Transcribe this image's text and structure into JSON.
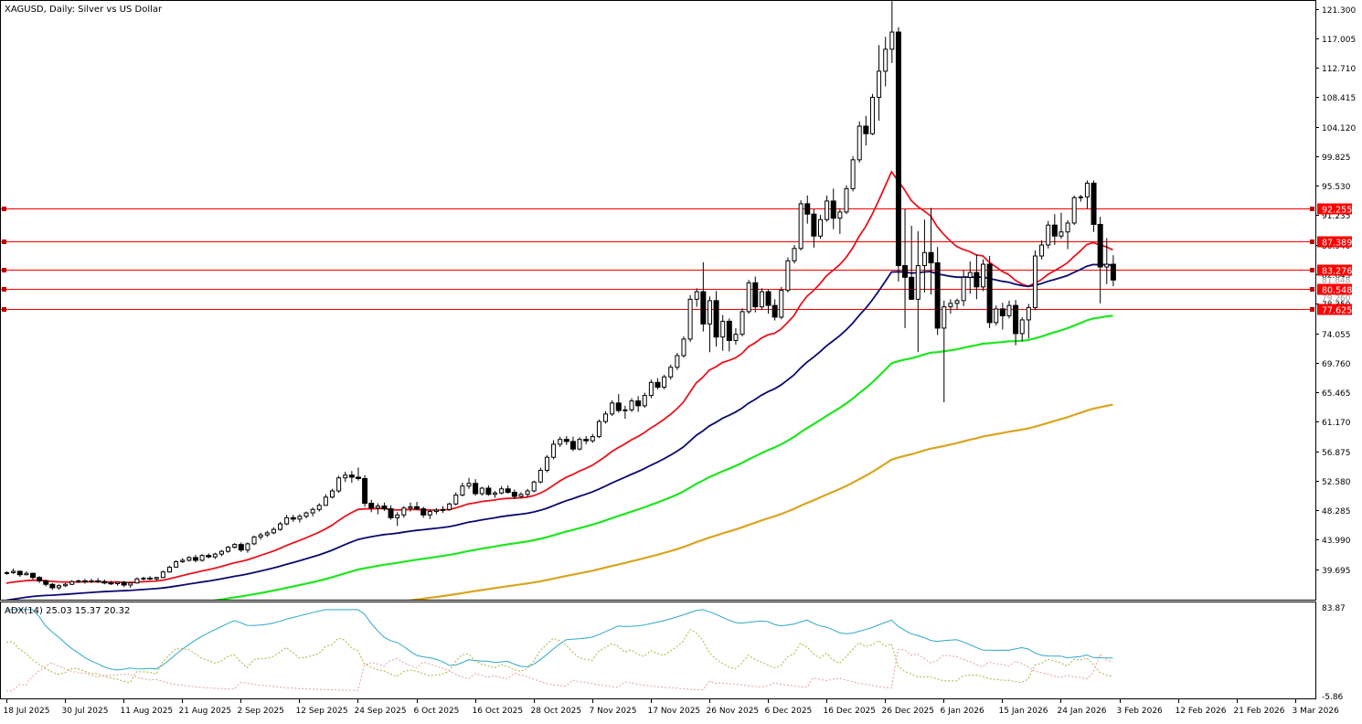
{
  "chart_data": {
    "type": "candlestick",
    "title": "XAGUSD, Daily:  Silver vs US Dollar",
    "y_ticks": [
      121.3,
      117.005,
      112.71,
      108.415,
      104.12,
      99.825,
      95.53,
      91.235,
      86.94,
      82.645,
      78.35,
      74.055,
      69.76,
      65.465,
      61.17,
      56.875,
      52.58,
      48.285,
      43.99,
      39.695
    ],
    "y_tick_labels": [
      "121.300",
      "117.005",
      "112.710",
      "108.415",
      "104.120",
      "99.825",
      "95.530",
      "91.235",
      "86.940",
      "82.645",
      "78.350",
      "74.055",
      "69.760",
      "65.465",
      "61.170",
      "56.875",
      "52.580",
      "48.285",
      "43.990",
      "39.695"
    ],
    "ylim": [
      35.4,
      122.3
    ],
    "x_labels": [
      "18 Jul 2025",
      "30 Jul 2025",
      "11 Aug 2025",
      "21 Aug 2025",
      "2 Sep 2025",
      "12 Sep 2025",
      "24 Sep 2025",
      "6 Oct 2025",
      "16 Oct 2025",
      "28 Oct 2025",
      "7 Nov 2025",
      "17 Nov 2025",
      "26 Nov 2025",
      "6 Dec 2025",
      "16 Dec 2025",
      "26 Dec 2025",
      "6 Jan 2026",
      "15 Jan 2026",
      "24 Jan 2026",
      "3 Feb 2026",
      "12 Feb 2026",
      "21 Feb 2026",
      "3 Mar 2026"
    ],
    "x_label_bar_index": [
      0,
      9,
      18,
      27,
      36,
      45,
      54,
      63,
      72,
      81,
      90,
      99,
      108,
      117,
      126,
      135,
      144,
      153,
      162,
      171,
      180,
      189,
      198
    ],
    "levels": [
      {
        "value": 92.255,
        "label": "92.255"
      },
      {
        "value": 87.389,
        "label": "87.389"
      },
      {
        "value": 83.276,
        "label": "83.276"
      },
      {
        "value": 80.548,
        "label": "80.548"
      },
      {
        "value": 77.625,
        "label": "77.625"
      }
    ],
    "hidden_labels": [
      "81.848",
      "79.260"
    ],
    "indicator": {
      "label": "ADX(14) 25.03 15.37 20.32",
      "adx": 25.03,
      "plus_di": 15.37,
      "minus_di": 20.32,
      "ylim": [
        -5.86,
        83.87
      ],
      "y_tick_labels": [
        "83.87",
        "-5.86"
      ]
    },
    "ohlc": [
      [
        39.1,
        39.4,
        38.9,
        39.2
      ],
      [
        39.2,
        39.8,
        39.0,
        39.4
      ],
      [
        39.4,
        39.5,
        38.6,
        38.9
      ],
      [
        38.9,
        39.4,
        38.8,
        39.1
      ],
      [
        39.1,
        39.2,
        38.2,
        38.5
      ],
      [
        38.5,
        38.7,
        37.7,
        38.0
      ],
      [
        38.0,
        38.2,
        37.2,
        37.5
      ],
      [
        37.5,
        37.7,
        36.7,
        37.0
      ],
      [
        37.0,
        37.5,
        36.7,
        37.3
      ],
      [
        37.3,
        37.7,
        37.1,
        37.5
      ],
      [
        37.5,
        38.1,
        37.4,
        37.9
      ],
      [
        37.9,
        38.2,
        37.7,
        38.0
      ],
      [
        38.0,
        38.3,
        37.6,
        37.9
      ],
      [
        37.9,
        38.3,
        37.7,
        38.0
      ],
      [
        38.0,
        38.4,
        37.7,
        37.9
      ],
      [
        37.9,
        38.2,
        37.5,
        37.7
      ],
      [
        37.7,
        38.0,
        37.4,
        37.6
      ],
      [
        37.6,
        37.9,
        37.3,
        37.8
      ],
      [
        37.8,
        38.0,
        37.1,
        37.4
      ],
      [
        37.4,
        37.8,
        37.0,
        37.7
      ],
      [
        37.7,
        38.5,
        37.6,
        38.3
      ],
      [
        38.3,
        38.6,
        38.1,
        38.4
      ],
      [
        38.4,
        38.7,
        38.1,
        38.3
      ],
      [
        38.3,
        38.6,
        38.0,
        38.5
      ],
      [
        38.5,
        39.5,
        38.4,
        39.3
      ],
      [
        39.3,
        40.2,
        39.2,
        40.0
      ],
      [
        40.0,
        41.0,
        39.9,
        40.8
      ],
      [
        40.8,
        41.3,
        40.6,
        41.0
      ],
      [
        41.0,
        41.6,
        40.8,
        41.4
      ],
      [
        41.4,
        41.8,
        40.7,
        41.0
      ],
      [
        41.0,
        41.9,
        40.8,
        41.7
      ],
      [
        41.7,
        42.0,
        41.3,
        41.5
      ],
      [
        41.5,
        42.1,
        41.2,
        41.9
      ],
      [
        41.9,
        42.5,
        41.6,
        42.3
      ],
      [
        42.3,
        43.1,
        42.1,
        42.9
      ],
      [
        42.9,
        43.5,
        42.7,
        43.3
      ],
      [
        43.3,
        43.6,
        42.2,
        42.5
      ],
      [
        42.5,
        43.6,
        42.1,
        43.4
      ],
      [
        43.4,
        44.6,
        43.2,
        44.4
      ],
      [
        44.4,
        45.0,
        44.0,
        44.7
      ],
      [
        44.7,
        45.3,
        44.4,
        45.0
      ],
      [
        45.0,
        45.8,
        44.8,
        45.5
      ],
      [
        45.5,
        46.6,
        45.3,
        46.3
      ],
      [
        46.3,
        47.6,
        46.1,
        47.2
      ],
      [
        47.2,
        47.6,
        46.6,
        47.0
      ],
      [
        47.0,
        47.7,
        46.5,
        47.4
      ],
      [
        47.4,
        48.1,
        47.1,
        47.9
      ],
      [
        47.9,
        48.7,
        47.4,
        48.4
      ],
      [
        48.4,
        49.3,
        48.1,
        49.0
      ],
      [
        49.0,
        50.6,
        48.9,
        50.2
      ],
      [
        50.2,
        51.4,
        50.0,
        51.1
      ],
      [
        51.1,
        53.3,
        50.8,
        53.0
      ],
      [
        53.0,
        53.9,
        52.4,
        53.4
      ],
      [
        53.4,
        54.0,
        52.3,
        53.1
      ],
      [
        53.1,
        54.5,
        52.6,
        52.9
      ],
      [
        52.9,
        53.4,
        48.8,
        49.3
      ],
      [
        49.3,
        49.8,
        48.0,
        48.6
      ],
      [
        48.6,
        49.3,
        47.7,
        48.9
      ],
      [
        48.9,
        49.4,
        48.2,
        48.5
      ],
      [
        48.5,
        49.0,
        46.9,
        47.2
      ],
      [
        47.2,
        48.0,
        46.0,
        47.6
      ],
      [
        47.6,
        48.9,
        47.2,
        48.6
      ],
      [
        48.6,
        49.4,
        48.1,
        48.8
      ],
      [
        48.8,
        49.5,
        48.3,
        48.5
      ],
      [
        48.5,
        48.8,
        47.2,
        47.6
      ],
      [
        47.6,
        48.4,
        47.0,
        48.1
      ],
      [
        48.1,
        48.6,
        47.7,
        48.3
      ],
      [
        48.3,
        48.9,
        47.9,
        48.4
      ],
      [
        48.4,
        49.4,
        48.2,
        49.2
      ],
      [
        49.2,
        50.9,
        49.0,
        50.5
      ],
      [
        50.5,
        52.3,
        50.3,
        51.8
      ],
      [
        51.8,
        53.0,
        51.4,
        52.2
      ],
      [
        52.2,
        52.8,
        50.4,
        50.7
      ],
      [
        50.7,
        51.7,
        50.4,
        51.5
      ],
      [
        51.5,
        51.9,
        50.4,
        50.6
      ],
      [
        50.6,
        51.1,
        50.1,
        50.8
      ],
      [
        50.8,
        51.8,
        50.6,
        51.4
      ],
      [
        51.4,
        51.9,
        50.7,
        50.9
      ],
      [
        50.9,
        51.3,
        49.9,
        50.3
      ],
      [
        50.3,
        50.9,
        50.0,
        50.6
      ],
      [
        50.6,
        51.4,
        50.2,
        51.1
      ],
      [
        51.1,
        52.6,
        50.9,
        52.4
      ],
      [
        52.4,
        54.5,
        52.2,
        54.1
      ],
      [
        54.1,
        56.3,
        53.8,
        56.0
      ],
      [
        56.0,
        58.5,
        55.7,
        57.9
      ],
      [
        57.9,
        59.0,
        57.5,
        58.6
      ],
      [
        58.6,
        59.1,
        57.8,
        58.3
      ],
      [
        58.3,
        59.0,
        56.9,
        57.2
      ],
      [
        57.2,
        58.9,
        57.0,
        58.6
      ],
      [
        58.6,
        59.1,
        57.9,
        58.4
      ],
      [
        58.4,
        59.4,
        58.1,
        59.0
      ],
      [
        59.0,
        61.5,
        58.8,
        61.2
      ],
      [
        61.2,
        62.7,
        60.9,
        62.3
      ],
      [
        62.3,
        64.3,
        62.0,
        63.9
      ],
      [
        63.9,
        65.2,
        62.5,
        62.8
      ],
      [
        62.8,
        63.5,
        61.6,
        62.9
      ],
      [
        62.9,
        64.6,
        62.6,
        64.2
      ],
      [
        64.2,
        64.9,
        62.6,
        63.5
      ],
      [
        63.5,
        65.4,
        63.2,
        65.0
      ],
      [
        65.0,
        67.3,
        64.6,
        66.9
      ],
      [
        66.9,
        67.5,
        65.9,
        66.2
      ],
      [
        66.2,
        68.0,
        65.9,
        67.7
      ],
      [
        67.7,
        69.5,
        67.3,
        69.1
      ],
      [
        69.1,
        71.2,
        68.7,
        70.8
      ],
      [
        70.8,
        73.6,
        70.5,
        73.2
      ],
      [
        73.2,
        79.6,
        72.8,
        79.0
      ],
      [
        79.0,
        80.6,
        77.9,
        80.1
      ],
      [
        80.1,
        84.4,
        74.3,
        75.4
      ],
      [
        75.4,
        79.4,
        71.3,
        78.8
      ],
      [
        78.8,
        80.2,
        72.1,
        73.5
      ],
      [
        73.5,
        76.7,
        71.5,
        75.8
      ],
      [
        75.8,
        76.2,
        71.4,
        73.0
      ],
      [
        73.0,
        74.8,
        72.4,
        73.9
      ],
      [
        73.9,
        77.7,
        73.6,
        77.2
      ],
      [
        77.2,
        81.8,
        76.9,
        81.4
      ],
      [
        81.4,
        82.3,
        77.1,
        77.9
      ],
      [
        77.9,
        80.6,
        77.5,
        80.1
      ],
      [
        80.1,
        80.4,
        76.9,
        78.1
      ],
      [
        78.1,
        79.0,
        75.9,
        76.4
      ],
      [
        76.4,
        80.8,
        76.1,
        80.3
      ],
      [
        80.3,
        85.1,
        80.0,
        84.6
      ],
      [
        84.6,
        86.9,
        84.2,
        86.4
      ],
      [
        86.4,
        93.4,
        86.1,
        92.9
      ],
      [
        92.9,
        94.1,
        90.0,
        91.4
      ],
      [
        91.4,
        92.1,
        86.5,
        88.2
      ],
      [
        88.2,
        91.3,
        87.8,
        90.6
      ],
      [
        90.6,
        94.1,
        90.3,
        93.3
      ],
      [
        93.3,
        95.1,
        89.2,
        90.8
      ],
      [
        90.8,
        92.2,
        88.5,
        91.7
      ],
      [
        91.7,
        95.6,
        91.4,
        95.1
      ],
      [
        95.1,
        99.8,
        94.7,
        99.3
      ],
      [
        99.3,
        104.9,
        98.9,
        104.2
      ],
      [
        104.2,
        105.7,
        101.4,
        103.1
      ],
      [
        103.1,
        108.9,
        102.9,
        108.4
      ],
      [
        108.4,
        116.0,
        105.0,
        112.2
      ],
      [
        112.2,
        117.2,
        110.0,
        115.4
      ],
      [
        115.4,
        122.4,
        113.4,
        117.9
      ],
      [
        117.9,
        118.6,
        81.6,
        83.9
      ],
      [
        83.9,
        92.1,
        74.8,
        82.2
      ],
      [
        82.2,
        89.7,
        78.9,
        79.0
      ],
      [
        79.0,
        88.9,
        71.3,
        83.9
      ],
      [
        83.9,
        90.6,
        80.0,
        85.8
      ],
      [
        85.8,
        92.3,
        79.7,
        84.3
      ],
      [
        84.3,
        86.6,
        73.8,
        74.8
      ],
      [
        74.8,
        78.8,
        64.0,
        77.9
      ],
      [
        77.9,
        79.0,
        76.9,
        78.4
      ],
      [
        78.4,
        79.1,
        77.5,
        78.8
      ],
      [
        78.8,
        83.2,
        78.0,
        82.2
      ],
      [
        82.2,
        84.5,
        79.8,
        82.9
      ],
      [
        82.9,
        85.5,
        79.0,
        80.8
      ],
      [
        80.8,
        84.8,
        80.2,
        84.1
      ],
      [
        84.1,
        85.3,
        74.8,
        75.6
      ],
      [
        75.6,
        78.1,
        75.2,
        77.6
      ],
      [
        77.6,
        78.5,
        74.6,
        76.6
      ],
      [
        76.6,
        78.8,
        76.2,
        78.1
      ],
      [
        78.1,
        78.9,
        72.3,
        74.0
      ],
      [
        74.0,
        76.4,
        72.9,
        76.0
      ],
      [
        76.0,
        78.3,
        73.3,
        77.8
      ],
      [
        77.8,
        86.1,
        77.4,
        85.3
      ],
      [
        85.3,
        87.6,
        84.8,
        86.9
      ],
      [
        86.9,
        90.4,
        86.4,
        89.8
      ],
      [
        89.8,
        91.4,
        86.9,
        88.2
      ],
      [
        88.2,
        91.6,
        87.8,
        88.8
      ],
      [
        88.8,
        90.5,
        86.3,
        90.1
      ],
      [
        90.1,
        94.1,
        89.8,
        93.8
      ],
      [
        93.8,
        94.2,
        93.2,
        93.9
      ],
      [
        93.9,
        96.3,
        92.2,
        95.9
      ],
      [
        95.9,
        96.3,
        88.8,
        89.9
      ],
      [
        89.9,
        91.0,
        78.4,
        83.7
      ],
      [
        83.7,
        87.9,
        81.2,
        84.1
      ],
      [
        84.1,
        85.4,
        80.9,
        81.8
      ]
    ]
  }
}
